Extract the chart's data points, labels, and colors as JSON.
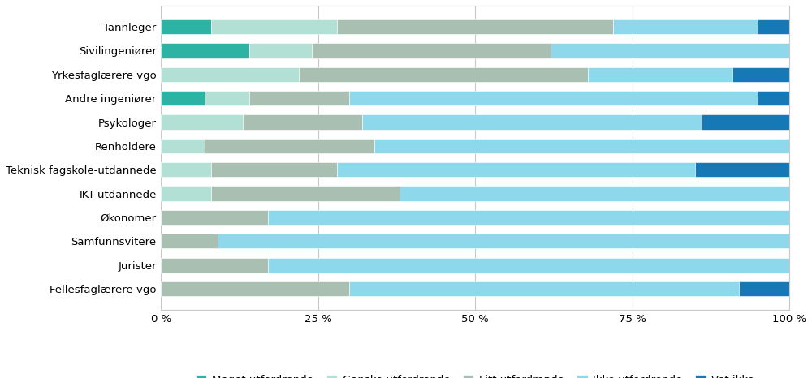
{
  "categories": [
    "Fellesfaglærere vgo",
    "Jurister",
    "Samfunnsvitere",
    "Økonomer",
    "IKT-utdannede",
    "Teknisk fagskole-utdannede",
    "Renholdere",
    "Psykologer",
    "Andre ingeniører",
    "Yrkesfaglærere vgo",
    "Sivilingeniører",
    "Tannleger"
  ],
  "series": {
    "Meget utfordrende": [
      0,
      0,
      0,
      0,
      0,
      0,
      0,
      0,
      7,
      0,
      14,
      8
    ],
    "Ganske utfordrende": [
      0,
      0,
      0,
      0,
      8,
      8,
      7,
      13,
      7,
      22,
      10,
      20
    ],
    "Litt utfordrende": [
      30,
      17,
      9,
      17,
      30,
      20,
      27,
      19,
      16,
      46,
      38,
      44
    ],
    "Ikke utfordrende": [
      62,
      83,
      91,
      83,
      62,
      57,
      66,
      54,
      65,
      23,
      38,
      23
    ],
    "Vet ikke": [
      8,
      0,
      0,
      0,
      0,
      15,
      0,
      14,
      5,
      9,
      0,
      5
    ]
  },
  "colors": {
    "Meget utfordrende": "#2db3a4",
    "Ganske utfordrende": "#b2e0d5",
    "Litt utfordrende": "#a8bfb2",
    "Ikke utfordrende": "#8dd8ea",
    "Vet ikke": "#1679b5"
  },
  "xlim": [
    0,
    100
  ],
  "xticks": [
    0,
    25,
    50,
    75,
    100
  ],
  "xticklabels": [
    "0 %",
    "25 %",
    "50 %",
    "75 %",
    "100 %"
  ],
  "background_color": "#ffffff",
  "grid_color": "#c8c8c8",
  "tick_fontsize": 9.5,
  "legend_fontsize": 9.5,
  "bar_height": 0.62
}
